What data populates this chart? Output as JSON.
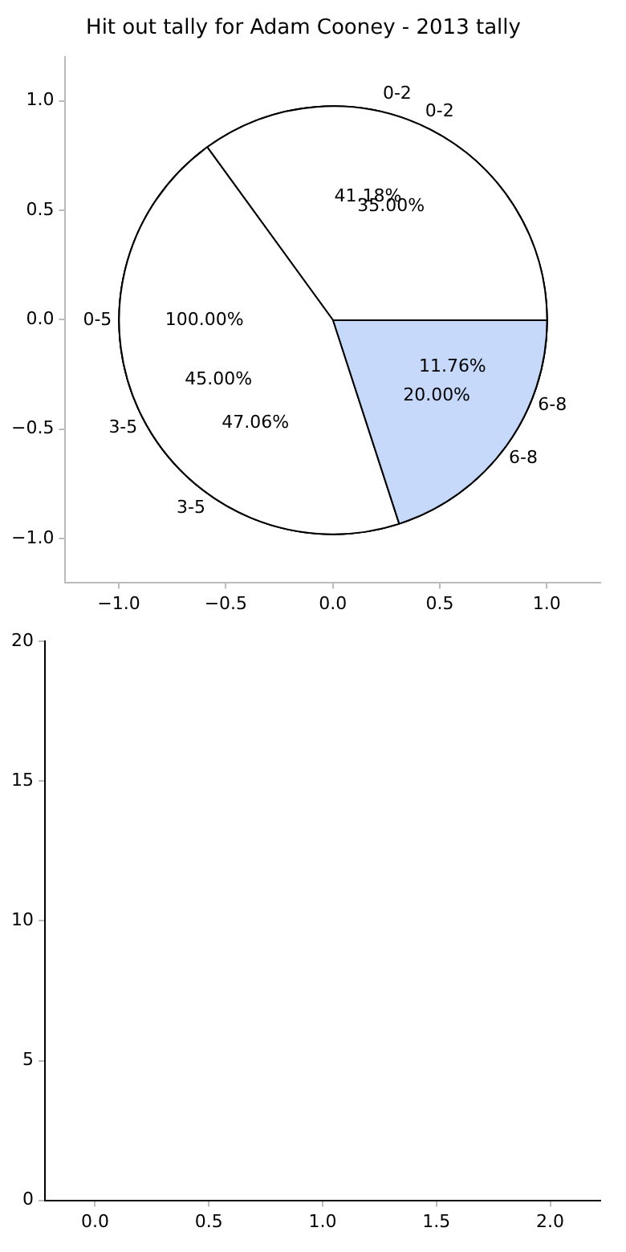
{
  "chart_data": [
    {
      "type": "scatter",
      "title": "Hit out tally for Adam Cooney - 2013 tally",
      "xlim": [
        -1.25,
        1.25
      ],
      "ylim": [
        -1.2,
        1.2
      ],
      "xticks": [
        {
          "value": -1,
          "label": "−1.0"
        },
        {
          "value": -0.5,
          "label": "−0.5"
        },
        {
          "value": 0,
          "label": "0.0"
        },
        {
          "value": 0.5,
          "label": "0.5"
        },
        {
          "value": 1,
          "label": "1.0"
        }
      ],
      "yticks": [
        {
          "value": -1,
          "label": "−1.0"
        },
        {
          "value": -0.5,
          "label": "−0.5"
        },
        {
          "value": 0,
          "label": "0.0"
        },
        {
          "value": 0.5,
          "label": "0.5"
        },
        {
          "value": 1,
          "label": "1.0"
        }
      ]
    },
    {
      "type": "pie",
      "categories": [
        "0-5"
      ],
      "values": [
        100
      ],
      "value_labels": [
        "100.00%"
      ],
      "colors": [
        "#ffffff"
      ]
    },
    {
      "type": "pie",
      "categories": [
        "0-2",
        "3-5",
        "6-8"
      ],
      "values": [
        41.18,
        47.06,
        11.76
      ],
      "value_labels": [
        "41.18%",
        "47.06%",
        "11.76%"
      ],
      "colors": [
        "#ffffff",
        "#ffffff",
        "#ffffff"
      ]
    },
    {
      "type": "pie",
      "categories": [
        "0-2",
        "3-5",
        "6-8"
      ],
      "values": [
        35,
        45,
        20
      ],
      "value_labels": [
        "35.00%",
        "45.00%",
        "20.00%"
      ],
      "colors": [
        "#ffffff",
        "#ffffff",
        "#c6d9fa"
      ]
    },
    {
      "type": "scatter",
      "xlim": [
        -0.22,
        2.22
      ],
      "ylim": [
        0,
        20
      ],
      "xticks": [
        {
          "value": 0,
          "label": "0.0"
        },
        {
          "value": 0.5,
          "label": "0.5"
        },
        {
          "value": 1,
          "label": "1.0"
        },
        {
          "value": 1.5,
          "label": "1.5"
        },
        {
          "value": 2,
          "label": "2.0"
        }
      ],
      "yticks": [
        0,
        5,
        10,
        15,
        20
      ]
    }
  ]
}
